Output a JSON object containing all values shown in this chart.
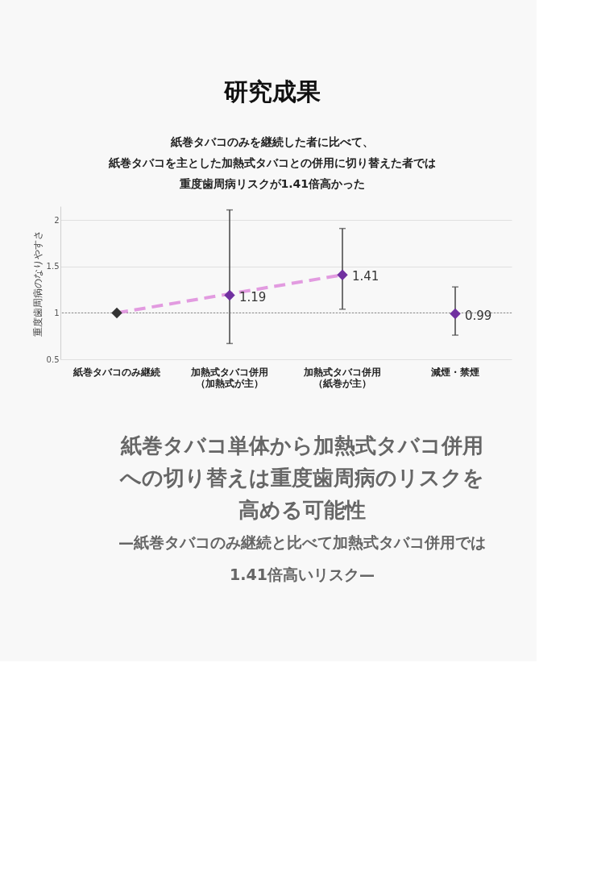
{
  "chart_data": {
    "type": "scatter",
    "title": "研究成果",
    "subtitle": "紙巻タバコのみを継続した者に比べて、紙巻タバコを主とした加熱式タバコとの併用に切り替えた者では重度歯周病リスクが1.41倍高かった",
    "ylabel": "重度歯周病のなりやすさ",
    "categories": [
      "紙巻タバコのみ継続",
      "加熱式タバコ併用（加熱式が主）",
      "加熱式タバコ併用（紙巻が主）",
      "減煙・禁煙"
    ],
    "values": [
      1,
      1.19,
      1.41,
      0.99
    ],
    "colors": [
      "#333333",
      "#7030a0",
      "#7030a0",
      "#7030a0"
    ],
    "errors": [
      null,
      [
        0.67,
        2.11
      ],
      [
        1.04,
        1.91
      ],
      [
        0.76,
        1.28
      ]
    ],
    "value_labels": [
      null,
      "1.19",
      "1.41",
      "0.99"
    ],
    "marker": "diamond",
    "ylim": [
      0.5,
      2.15
    ],
    "yticks": [
      0.5,
      1,
      1.5,
      2
    ],
    "grid": "y",
    "ref_lines": [
      {
        "axis": "y",
        "value": 1,
        "label": null,
        "color": "#888888",
        "line_style": "dotted"
      }
    ],
    "annotations": [
      "紙巻タバコ単体から加熱式タバコ併用への切り替えは重度歯周病のリスクを高める可能性",
      "—紙巻タバコのみ継続と比べて加熱式タバコ併用では1.41倍高いリスク—"
    ]
  }
}
